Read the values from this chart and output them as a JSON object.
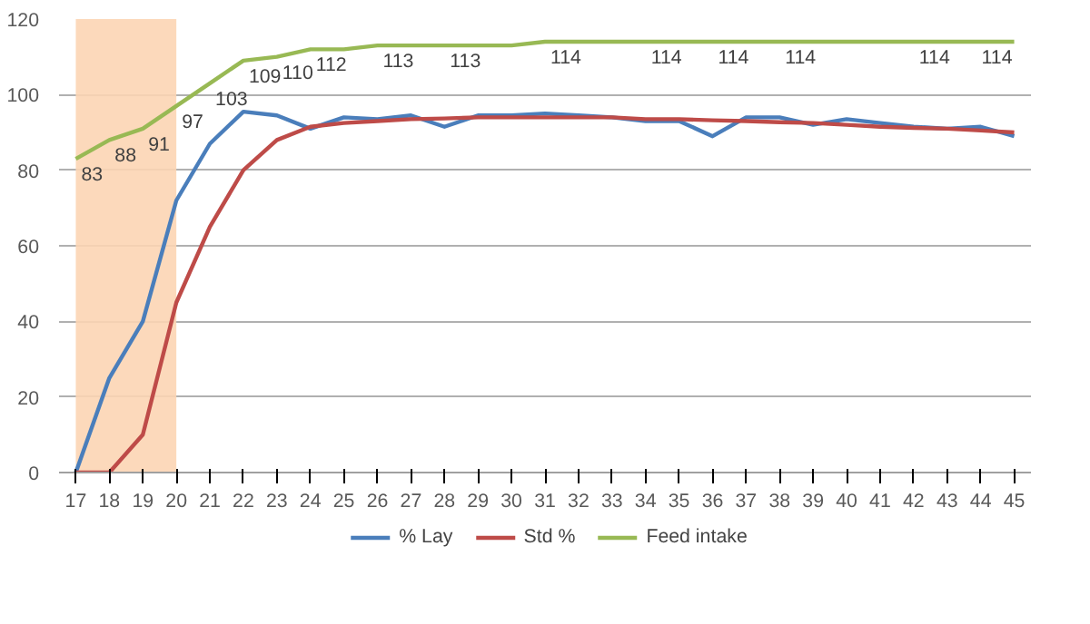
{
  "chart_data": {
    "type": "line",
    "x": [
      17,
      18,
      19,
      20,
      21,
      22,
      23,
      24,
      25,
      26,
      27,
      28,
      29,
      30,
      31,
      32,
      33,
      34,
      35,
      36,
      37,
      38,
      39,
      40,
      41,
      42,
      43,
      44,
      45
    ],
    "xlim": [
      16.5,
      45.5
    ],
    "xticks": [
      17,
      18,
      19,
      20,
      21,
      22,
      23,
      24,
      25,
      26,
      27,
      28,
      29,
      30,
      31,
      32,
      33,
      34,
      35,
      36,
      37,
      38,
      39,
      40,
      41,
      42,
      43,
      44,
      45
    ],
    "ylim": [
      0,
      120
    ],
    "yticks": [
      0,
      20,
      40,
      60,
      80,
      100,
      120
    ],
    "grid": "y",
    "legend": "bottom",
    "marker": "none",
    "line_style": "solid",
    "bands": [
      {
        "axis": "x",
        "from": 17,
        "to": 20,
        "color": "#fcd5b4"
      }
    ],
    "series": [
      {
        "name": "% Lay",
        "color": "#4a7ebb",
        "values": [
          0,
          25,
          40,
          72,
          87,
          95.5,
          94.5,
          91,
          94,
          93.5,
          94.5,
          91.5,
          94.5,
          94.5,
          95,
          94.5,
          94,
          93,
          93,
          89,
          94,
          94,
          92,
          93.5,
          92.5,
          91.5,
          91,
          91.5,
          89
        ]
      },
      {
        "name": "Std %",
        "color": "#be4b48",
        "values": [
          0,
          0,
          10,
          45,
          65,
          80,
          88,
          91.5,
          92.5,
          93,
          93.5,
          93.7,
          94,
          94,
          94,
          94,
          94,
          93.5,
          93.5,
          93.2,
          93,
          92.7,
          92.5,
          92,
          91.5,
          91.2,
          91,
          90.5,
          90
        ]
      },
      {
        "name": "Feed intake",
        "color": "#98b954",
        "values": [
          83,
          88,
          91,
          97,
          103,
          109,
          110,
          112,
          112,
          113,
          113,
          113,
          113,
          113,
          114,
          114,
          114,
          114,
          114,
          114,
          114,
          114,
          114,
          114,
          114,
          114,
          114,
          114,
          114
        ],
        "value_labels": [
          "83",
          "88",
          "91",
          "97",
          "103",
          "109",
          "110",
          "112",
          null,
          "113",
          null,
          "113",
          null,
          null,
          "114",
          null,
          null,
          "114",
          null,
          "114",
          null,
          "114",
          null,
          null,
          null,
          "114",
          null,
          null,
          "114"
        ]
      }
    ]
  }
}
